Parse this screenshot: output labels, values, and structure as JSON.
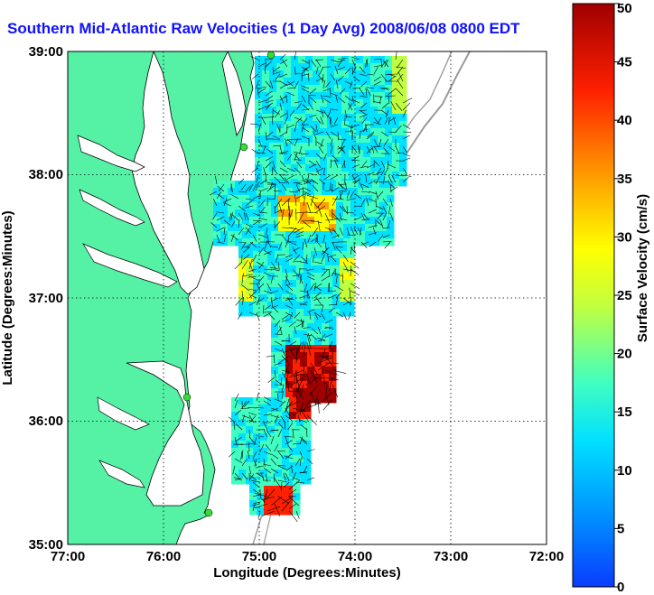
{
  "title": "Southern Mid-Atlantic Raw Velocities (1 Day Avg) 2008/06/08 0800 EDT",
  "x_axis": {
    "label": "Longitude (Degrees:Minutes)",
    "ticks": [
      "77:00",
      "76:00",
      "75:00",
      "74:00",
      "73:00",
      "72:00"
    ]
  },
  "y_axis": {
    "label": "Latitude (Degrees:Minutes)",
    "ticks": [
      "39:00",
      "38:00",
      "37:00",
      "36:00",
      "35:00"
    ]
  },
  "colorbar": {
    "label": "Surface Velocity (cm/s)",
    "ticks": [
      "50",
      "45",
      "40",
      "35",
      "30",
      "25",
      "20",
      "15",
      "10",
      "5",
      "0"
    ],
    "min": 0,
    "max": 50,
    "colors": [
      "#0a3cff",
      "#0090ff",
      "#00e0ff",
      "#40ffc0",
      "#c0ff40",
      "#ffff00",
      "#ffa000",
      "#ff2000",
      "#a00000"
    ]
  },
  "colors": {
    "land": "#55f2a6",
    "title": "#1010ff",
    "coast": "#000000",
    "bathymetry": "#9a9a9a",
    "station": "#33dd33"
  }
}
